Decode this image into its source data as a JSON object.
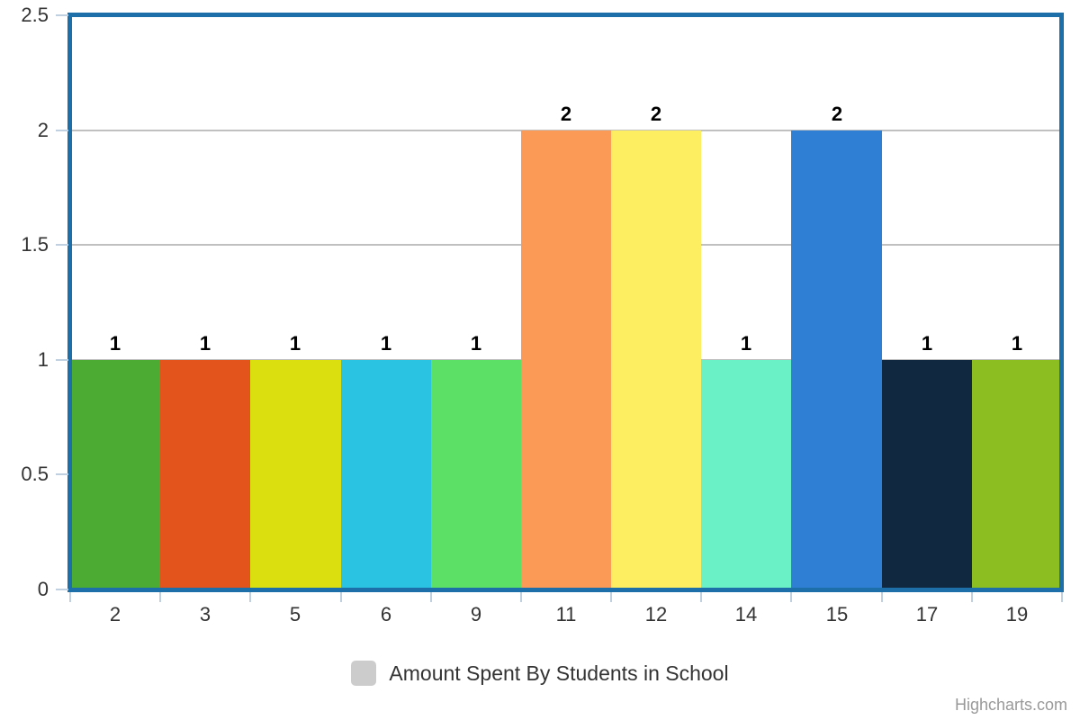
{
  "chart_data": {
    "type": "bar",
    "title": "",
    "xlabel": "",
    "ylabel": "",
    "categories": [
      "2",
      "3",
      "5",
      "6",
      "9",
      "11",
      "12",
      "14",
      "15",
      "17",
      "19"
    ],
    "values": [
      1,
      1,
      1,
      1,
      1,
      2,
      2,
      1,
      2,
      1,
      1
    ],
    "data_labels": [
      "1",
      "1",
      "1",
      "1",
      "1",
      "2",
      "2",
      "1",
      "2",
      "1",
      "1"
    ],
    "series_name": "Amount Spent By Students in School",
    "ylim": [
      0,
      2.5
    ],
    "y_ticks": [
      "0",
      "0.5",
      "1",
      "1.5",
      "2",
      "2.5"
    ],
    "grid": true,
    "legend_position": "bottom",
    "bar_colors": [
      "#4cab33",
      "#e2541b",
      "#dcdf0f",
      "#2ac3e2",
      "#5ce066",
      "#fb9a57",
      "#fdee61",
      "#6af2c6",
      "#2f80d4",
      "#112940",
      "#8cbe22"
    ]
  },
  "legend": {
    "label": "Amount Spent By Students in School",
    "marker_color": "#cccccc"
  },
  "credits": {
    "label": "Highcharts.com"
  },
  "colors": {
    "plot_border": "#1d6fa9",
    "grid_line": "#c0c0c0",
    "tick": "#c0d0e0",
    "axis_label": "#333333",
    "data_label": "#000000",
    "credits": "#999999"
  }
}
